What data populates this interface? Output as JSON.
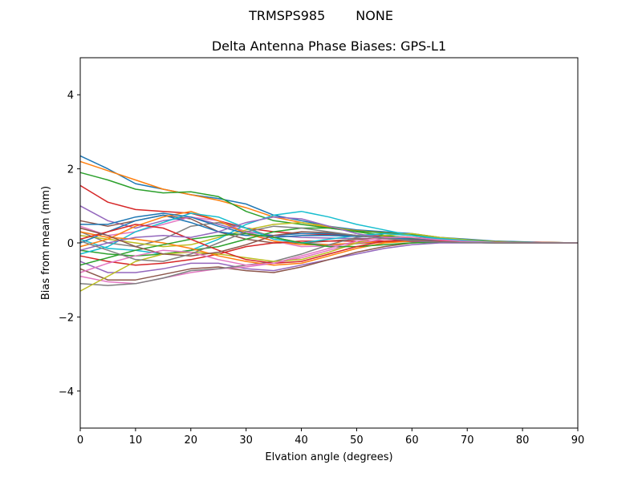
{
  "figure": {
    "suptitle_left": "TRMSPS985",
    "suptitle_right": "NONE"
  },
  "chart_data": {
    "type": "line",
    "title": "Delta Antenna Phase Biases: GPS-L1",
    "xlabel": "Elvation angle (degrees)",
    "ylabel": "Bias from mean (mm)",
    "xlim": [
      0,
      90
    ],
    "ylim": [
      -5,
      5
    ],
    "xticks": [
      0,
      10,
      20,
      30,
      40,
      50,
      60,
      70,
      80,
      90
    ],
    "yticks": [
      -4,
      -2,
      0,
      2,
      4
    ],
    "grid": false,
    "legend": "none",
    "x": [
      0,
      5,
      10,
      15,
      20,
      25,
      30,
      35,
      40,
      45,
      50,
      55,
      60,
      65,
      70,
      75,
      80,
      85,
      90
    ],
    "colors": [
      "#1f77b4",
      "#ff7f0e",
      "#2ca02c",
      "#d62728",
      "#9467bd",
      "#8c564b",
      "#e377c2",
      "#7f7f7f",
      "#bcbd22",
      "#17becf"
    ],
    "series": [
      {
        "values": [
          2.35,
          2.0,
          1.6,
          1.45,
          1.3,
          1.2,
          1.05,
          0.75,
          0.6,
          0.45,
          0.35,
          0.3,
          0.25,
          0.15,
          0.1,
          0.05,
          0.03,
          0.01,
          0.0
        ]
      },
      {
        "values": [
          2.2,
          1.95,
          1.7,
          1.45,
          1.3,
          1.15,
          0.95,
          0.7,
          0.55,
          0.42,
          0.33,
          0.28,
          0.22,
          0.14,
          0.08,
          0.04,
          0.02,
          0.01,
          0.0
        ]
      },
      {
        "values": [
          1.9,
          1.7,
          1.45,
          1.35,
          1.38,
          1.25,
          0.85,
          0.6,
          0.5,
          0.4,
          0.32,
          0.27,
          0.22,
          0.14,
          0.08,
          0.04,
          0.02,
          0.01,
          0.0
        ]
      },
      {
        "values": [
          1.55,
          1.1,
          0.9,
          0.85,
          0.8,
          0.6,
          0.4,
          0.3,
          0.25,
          0.22,
          0.2,
          0.18,
          0.15,
          0.1,
          0.06,
          0.03,
          0.02,
          0.01,
          0.0
        ]
      },
      {
        "values": [
          1.0,
          0.6,
          0.4,
          0.6,
          0.7,
          0.5,
          0.3,
          0.2,
          0.15,
          0.13,
          0.12,
          0.12,
          0.1,
          0.07,
          0.05,
          0.03,
          0.01,
          0.0,
          0.0
        ]
      },
      {
        "values": [
          0.6,
          0.45,
          0.6,
          0.75,
          0.65,
          0.3,
          0.1,
          0.0,
          0.0,
          0.05,
          0.1,
          0.12,
          0.1,
          0.07,
          0.04,
          0.02,
          0.01,
          0.0,
          0.0
        ]
      },
      {
        "values": [
          0.45,
          0.2,
          0.3,
          0.5,
          0.7,
          0.6,
          0.3,
          0.05,
          -0.1,
          -0.08,
          0.0,
          0.05,
          0.06,
          0.05,
          0.03,
          0.02,
          0.01,
          0.0,
          0.0
        ]
      },
      {
        "values": [
          0.3,
          0.0,
          -0.1,
          0.1,
          0.45,
          0.55,
          0.4,
          0.15,
          0.0,
          -0.05,
          -0.02,
          0.02,
          0.04,
          0.03,
          0.02,
          0.01,
          0.0,
          0.0,
          0.0
        ]
      },
      {
        "values": [
          0.2,
          0.1,
          0.0,
          -0.1,
          -0.05,
          0.15,
          0.35,
          0.5,
          0.55,
          0.45,
          0.3,
          0.2,
          0.12,
          0.06,
          0.03,
          0.01,
          0.0,
          0.0,
          0.0
        ]
      },
      {
        "values": [
          0.1,
          -0.15,
          -0.2,
          -0.3,
          -0.2,
          0.1,
          0.5,
          0.75,
          0.85,
          0.7,
          0.5,
          0.35,
          0.2,
          0.1,
          0.05,
          0.02,
          0.01,
          0.0,
          0.0
        ]
      },
      {
        "values": [
          0.0,
          0.3,
          0.6,
          0.75,
          0.55,
          0.3,
          0.2,
          0.2,
          0.25,
          0.25,
          0.2,
          0.15,
          0.1,
          0.05,
          0.03,
          0.01,
          0.0,
          0.0,
          0.0
        ]
      },
      {
        "values": [
          -0.1,
          0.1,
          0.45,
          0.7,
          0.85,
          0.6,
          0.25,
          0.05,
          -0.05,
          -0.05,
          0.0,
          0.03,
          0.04,
          0.03,
          0.02,
          0.01,
          0.0,
          0.0,
          0.0
        ]
      },
      {
        "values": [
          -0.2,
          -0.3,
          -0.35,
          -0.3,
          -0.2,
          -0.1,
          0.1,
          0.3,
          0.4,
          0.4,
          0.3,
          0.2,
          0.12,
          0.06,
          0.03,
          0.01,
          0.0,
          0.0,
          0.0
        ]
      },
      {
        "values": [
          -0.35,
          -0.5,
          -0.6,
          -0.55,
          -0.45,
          -0.3,
          -0.1,
          0.0,
          0.05,
          0.05,
          0.05,
          0.05,
          0.04,
          0.03,
          0.02,
          0.01,
          0.0,
          0.0,
          0.0
        ]
      },
      {
        "values": [
          -0.5,
          -0.8,
          -0.8,
          -0.7,
          -0.55,
          -0.55,
          -0.7,
          -0.75,
          -0.6,
          -0.45,
          -0.3,
          -0.15,
          -0.05,
          0.0,
          0.0,
          0.0,
          0.0,
          0.0,
          0.0
        ]
      },
      {
        "values": [
          -0.7,
          -1.0,
          -1.0,
          -0.85,
          -0.7,
          -0.65,
          -0.75,
          -0.8,
          -0.65,
          -0.45,
          -0.25,
          -0.1,
          0.0,
          0.03,
          0.02,
          0.01,
          0.0,
          0.0,
          0.0
        ]
      },
      {
        "values": [
          -0.9,
          -1.05,
          -1.1,
          -0.95,
          -0.8,
          -0.7,
          -0.65,
          -0.55,
          -0.4,
          -0.2,
          0.0,
          0.1,
          0.1,
          0.06,
          0.03,
          0.01,
          0.0,
          0.0,
          0.0
        ]
      },
      {
        "values": [
          -1.1,
          -1.15,
          -1.1,
          -0.95,
          -0.75,
          -0.7,
          -0.6,
          -0.5,
          -0.3,
          -0.05,
          0.15,
          0.25,
          0.2,
          0.12,
          0.06,
          0.02,
          0.01,
          0.0,
          0.0
        ]
      },
      {
        "values": [
          -1.3,
          -0.9,
          -0.5,
          -0.3,
          -0.25,
          -0.3,
          -0.4,
          -0.5,
          -0.45,
          -0.25,
          0.0,
          0.2,
          0.25,
          0.15,
          0.08,
          0.03,
          0.01,
          0.0,
          0.0
        ]
      },
      {
        "values": [
          -0.3,
          -0.1,
          0.3,
          0.55,
          0.8,
          0.7,
          0.4,
          0.1,
          0.0,
          0.1,
          0.2,
          0.25,
          0.2,
          0.12,
          0.06,
          0.02,
          0.01,
          0.0,
          0.0
        ]
      },
      {
        "values": [
          0.5,
          0.5,
          0.7,
          0.8,
          0.7,
          0.45,
          0.25,
          0.15,
          0.2,
          0.2,
          0.18,
          0.15,
          0.1,
          0.06,
          0.03,
          0.01,
          0.0,
          0.0,
          0.0
        ]
      },
      {
        "values": [
          0.3,
          0.15,
          0.1,
          0.0,
          -0.15,
          -0.35,
          -0.5,
          -0.6,
          -0.55,
          -0.35,
          -0.15,
          0.0,
          0.05,
          0.04,
          0.02,
          0.01,
          0.0,
          0.0,
          0.0
        ]
      },
      {
        "values": [
          -0.6,
          -0.4,
          -0.2,
          -0.05,
          0.1,
          0.2,
          0.25,
          0.15,
          0.0,
          -0.1,
          -0.1,
          -0.05,
          0.0,
          0.02,
          0.01,
          0.0,
          0.0,
          0.0,
          0.0
        ]
      },
      {
        "values": [
          0.1,
          0.3,
          0.5,
          0.4,
          0.1,
          -0.2,
          -0.45,
          -0.55,
          -0.5,
          -0.3,
          -0.1,
          0.05,
          0.08,
          0.05,
          0.03,
          0.01,
          0.0,
          0.0,
          0.0
        ]
      },
      {
        "values": [
          -0.2,
          0.0,
          0.15,
          0.2,
          0.15,
          0.3,
          0.55,
          0.7,
          0.65,
          0.45,
          0.25,
          0.12,
          0.05,
          0.02,
          0.01,
          0.0,
          0.0,
          0.0,
          0.0
        ]
      },
      {
        "values": [
          0.4,
          0.2,
          -0.1,
          -0.3,
          -0.35,
          -0.25,
          -0.05,
          0.2,
          0.3,
          0.28,
          0.2,
          0.12,
          0.06,
          0.03,
          0.01,
          0.0,
          0.0,
          0.0,
          0.0
        ]
      },
      {
        "values": [
          -0.8,
          -0.55,
          -0.35,
          -0.2,
          -0.25,
          -0.45,
          -0.6,
          -0.55,
          -0.35,
          -0.15,
          0.05,
          0.15,
          0.15,
          0.08,
          0.04,
          0.01,
          0.0,
          0.0,
          0.0
        ]
      },
      {
        "values": [
          0.05,
          -0.2,
          -0.45,
          -0.5,
          -0.3,
          0.0,
          0.3,
          0.45,
          0.4,
          0.3,
          0.2,
          0.12,
          0.07,
          0.03,
          0.01,
          0.0,
          0.0,
          0.0,
          0.0
        ]
      }
    ]
  }
}
